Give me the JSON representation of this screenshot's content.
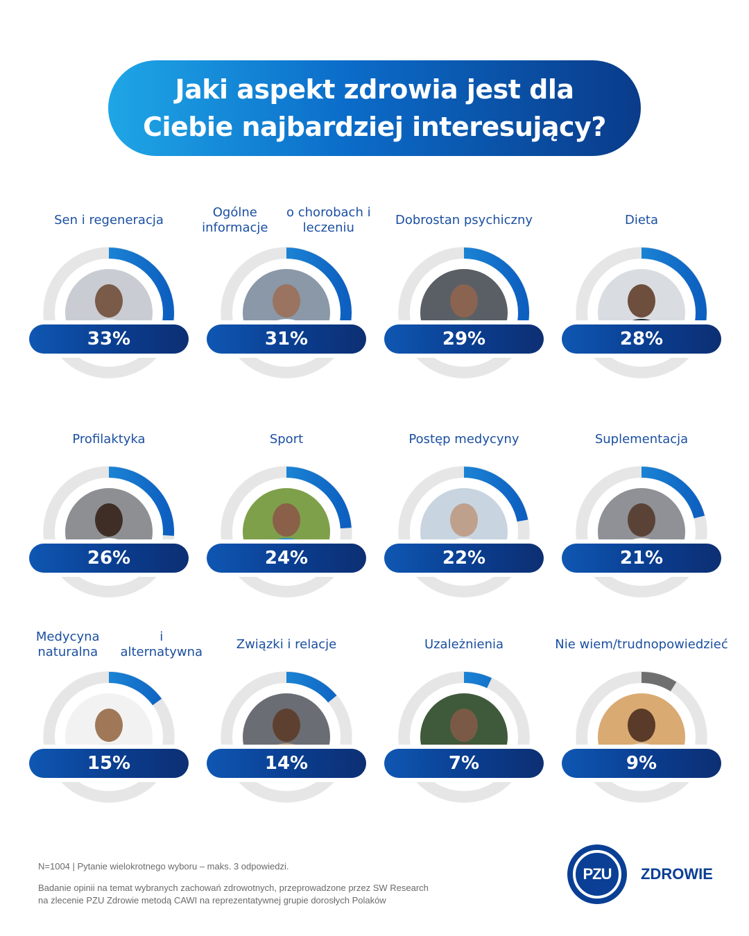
{
  "title": {
    "line1": "Jaki aspekt zdrowia jest dla",
    "line2": "Ciebie najbardziej interesujący?"
  },
  "chart_data": {
    "type": "bar",
    "unit": "%",
    "categories": [
      [
        "Sen i regeneracja"
      ],
      [
        "Ogólne informacje",
        "o chorobach i leczeniu"
      ],
      [
        "Dobrostan psychiczny"
      ],
      [
        "Dieta"
      ],
      [
        "Profilaktyka"
      ],
      [
        "Sport"
      ],
      [
        "Postęp medycyny"
      ],
      [
        "Suplementacja"
      ],
      [
        "Medycyna naturalna",
        "i alternatywna"
      ],
      [
        "Związki i relacje"
      ],
      [
        "Uzależnienia"
      ],
      [
        "Nie wiem/trudno",
        "powiedzieć"
      ]
    ],
    "values": [
      33,
      31,
      29,
      28,
      26,
      24,
      22,
      21,
      15,
      14,
      7,
      9
    ],
    "labels": [
      "33%",
      "31%",
      "29%",
      "28%",
      "26%",
      "24%",
      "22%",
      "21%",
      "15%",
      "14%",
      "7%",
      "9%"
    ],
    "ylim": [
      0,
      100
    ],
    "colors": {
      "arc": [
        "#0d5fc0",
        "#29a8e8"
      ],
      "arc_last": "#6f6f6f",
      "track": "#e6e6e6"
    }
  },
  "photos": [
    {
      "bg": "#c9ccd2",
      "head": "#7a5a48",
      "body": "#e8eaee"
    },
    {
      "bg": "#8a98a8",
      "head": "#9a7460",
      "body": "#f2f4f7"
    },
    {
      "bg": "#5a5f66",
      "head": "#8a6450",
      "body": "#5a7a68"
    },
    {
      "bg": "#d9dde2",
      "head": "#6e4e3c",
      "body": "#1f2226"
    },
    {
      "bg": "#8d8f93",
      "head": "#3e2e26",
      "body": "#f4f5f7"
    },
    {
      "bg": "#7fa04a",
      "head": "#8a6048",
      "body": "#1f8fd2"
    },
    {
      "bg": "#c8d4e0",
      "head": "#bfa08c",
      "body": "#f2f4f8"
    },
    {
      "bg": "#8f9196",
      "head": "#5a4236",
      "body": "#f0eeea"
    },
    {
      "bg": "#f2f2f2",
      "head": "#a07858",
      "body": "#e8ece4"
    },
    {
      "bg": "#6a6e74",
      "head": "#5e4030",
      "body": "#c49a7a"
    },
    {
      "bg": "#3f5a3a",
      "head": "#7a5a46",
      "body": "#5a4a36"
    },
    {
      "bg": "#d9aa72",
      "head": "#5a3a28",
      "body": "#e2dfd9"
    }
  ],
  "footer": {
    "note": "N=1004  |  Pytanie wielokrotnego wyboru – maks. 3 odpowiedzi.",
    "source_line1": "Badanie opinii na temat wybranych zachowań zdrowotnych, przeprowadzone przez SW Research",
    "source_line2": "na zlecenie PZU Zdrowie metodą CAWI na reprezentatywnej grupie dorosłych Polaków"
  },
  "logo": {
    "mark": "PZU",
    "brand": "ZDROWIE"
  }
}
